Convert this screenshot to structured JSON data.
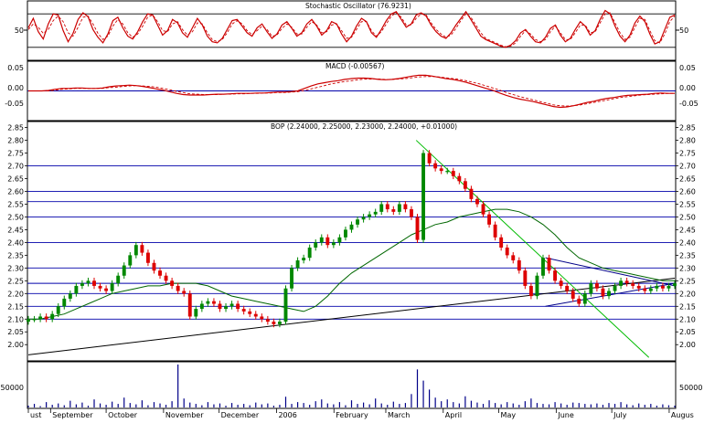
{
  "chart_data": [
    {
      "type": "line",
      "panel": "stochastic",
      "title": "Stochastic Oscillator (76.9231)",
      "yticks": [
        "50"
      ],
      "ylim": [
        0,
        100
      ],
      "levels": [
        80,
        20
      ],
      "grid": false,
      "series": [
        {
          "role": "%K",
          "color": "#cc0000",
          "values": [
            55,
            72,
            48,
            35,
            62,
            80,
            78,
            50,
            30,
            45,
            70,
            82,
            75,
            52,
            38,
            28,
            44,
            68,
            74,
            55,
            40,
            35,
            48,
            66,
            80,
            78,
            60,
            42,
            50,
            70,
            64,
            46,
            38,
            55,
            72,
            60,
            40,
            30,
            28,
            36,
            52,
            68,
            70,
            58,
            46,
            40,
            55,
            62,
            48,
            36,
            44,
            60,
            66,
            54,
            40,
            46,
            62,
            70,
            58,
            42,
            50,
            66,
            62,
            44,
            30,
            40,
            58,
            72,
            66,
            46,
            38,
            52,
            68,
            80,
            84,
            70,
            56,
            62,
            78,
            82,
            76,
            60,
            48,
            40,
            36,
            46,
            60,
            72,
            84,
            70,
            55,
            40,
            34,
            30,
            26,
            22,
            20,
            24,
            32,
            46,
            52,
            40,
            30,
            28,
            38,
            54,
            60,
            42,
            30,
            36,
            52,
            66,
            58,
            42,
            50,
            70,
            86,
            80,
            58,
            40,
            30,
            42,
            64,
            76,
            66,
            44,
            26,
            30,
            52,
            74,
            78
          ]
        },
        {
          "role": "%D",
          "color": "#cc0000",
          "dash": true,
          "values": [
            52,
            62,
            56,
            45,
            52,
            68,
            76,
            66,
            46,
            40,
            56,
            74,
            76,
            62,
            45,
            34,
            40,
            58,
            70,
            62,
            46,
            38,
            44,
            58,
            74,
            78,
            66,
            50,
            48,
            62,
            66,
            52,
            42,
            48,
            64,
            62,
            46,
            34,
            30,
            34,
            46,
            62,
            68,
            62,
            50,
            43,
            50,
            58,
            52,
            40,
            42,
            54,
            62,
            56,
            44,
            44,
            56,
            66,
            60,
            46,
            48,
            60,
            62,
            50,
            36,
            38,
            52,
            66,
            66,
            50,
            40,
            48,
            62,
            76,
            82,
            74,
            60,
            60,
            72,
            80,
            78,
            64,
            52,
            44,
            38,
            42,
            54,
            68,
            80,
            74,
            60,
            46,
            36,
            32,
            28,
            24,
            21,
            22,
            28,
            40,
            50,
            44,
            34,
            30,
            34,
            48,
            58,
            46,
            34,
            34,
            46,
            60,
            60,
            46,
            48,
            64,
            80,
            82,
            64,
            46,
            34,
            38,
            56,
            72,
            70,
            50,
            32,
            28,
            44,
            66,
            76
          ]
        }
      ]
    },
    {
      "type": "line",
      "panel": "macd",
      "title": "MACD (-0.00567)",
      "yticks": [
        "0.05",
        "0.00",
        "-0.05"
      ],
      "ylim": [
        -0.07,
        0.07
      ],
      "levels": [
        0
      ],
      "series": [
        {
          "role": "MACD",
          "color": "#cc0000",
          "values": [
            0.0,
            0.0,
            0.0,
            0.001,
            0.004,
            0.006,
            0.006,
            0.007,
            0.007,
            0.006,
            0.006,
            0.007,
            0.01,
            0.012,
            0.013,
            0.014,
            0.013,
            0.011,
            0.008,
            0.005,
            0.002,
            -0.002,
            -0.006,
            -0.009,
            -0.01,
            -0.01,
            -0.01,
            -0.009,
            -0.008,
            -0.008,
            -0.007,
            -0.006,
            -0.006,
            -0.006,
            -0.005,
            -0.005,
            -0.004,
            -0.003,
            -0.003,
            -0.002,
            0.0,
            0.006,
            0.012,
            0.017,
            0.02,
            0.023,
            0.025,
            0.028,
            0.03,
            0.031,
            0.031,
            0.03,
            0.028,
            0.027,
            0.028,
            0.03,
            0.033,
            0.036,
            0.038,
            0.038,
            0.036,
            0.033,
            0.03,
            0.028,
            0.025,
            0.021,
            0.016,
            0.011,
            0.006,
            0.001,
            -0.005,
            -0.011,
            -0.016,
            -0.02,
            -0.023,
            -0.026,
            -0.03,
            -0.034,
            -0.038,
            -0.04,
            -0.039,
            -0.036,
            -0.032,
            -0.028,
            -0.025,
            -0.021,
            -0.018,
            -0.016,
            -0.013,
            -0.011,
            -0.01,
            -0.009,
            -0.008,
            -0.006,
            -0.005,
            -0.006,
            -0.006
          ]
        },
        {
          "role": "Signal",
          "color": "#cc0000",
          "dash": true,
          "values": [
            0.0,
            0.0,
            0.0,
            0.0,
            0.002,
            0.004,
            0.005,
            0.006,
            0.006,
            0.006,
            0.006,
            0.006,
            0.008,
            0.009,
            0.011,
            0.012,
            0.013,
            0.012,
            0.011,
            0.009,
            0.006,
            0.003,
            -0.001,
            -0.004,
            -0.007,
            -0.008,
            -0.009,
            -0.009,
            -0.009,
            -0.008,
            -0.008,
            -0.007,
            -0.007,
            -0.006,
            -0.006,
            -0.005,
            -0.005,
            -0.004,
            -0.004,
            -0.003,
            -0.002,
            0.001,
            0.005,
            0.009,
            0.013,
            0.017,
            0.02,
            0.023,
            0.025,
            0.027,
            0.029,
            0.029,
            0.029,
            0.028,
            0.028,
            0.029,
            0.03,
            0.032,
            0.034,
            0.035,
            0.035,
            0.034,
            0.032,
            0.03,
            0.028,
            0.025,
            0.021,
            0.017,
            0.012,
            0.007,
            0.002,
            -0.004,
            -0.009,
            -0.014,
            -0.018,
            -0.022,
            -0.026,
            -0.03,
            -0.034,
            -0.036,
            -0.037,
            -0.036,
            -0.034,
            -0.031,
            -0.028,
            -0.025,
            -0.022,
            -0.019,
            -0.016,
            -0.014,
            -0.012,
            -0.01,
            -0.009,
            -0.008,
            -0.007,
            -0.006,
            -0.006
          ]
        }
      ]
    },
    {
      "type": "candlestick",
      "panel": "price",
      "title": "BOP (2.24000, 2.25000, 2.23000, 2.24000, +0.01000)",
      "ylim": [
        1.94,
        2.87
      ],
      "yticks": [
        "2.85",
        "2.80",
        "2.75",
        "2.70",
        "2.65",
        "2.60",
        "2.55",
        "2.50",
        "2.45",
        "2.40",
        "2.35",
        "2.30",
        "2.25",
        "2.20",
        "2.15",
        "2.10",
        "2.05",
        "2.00"
      ],
      "horizontal_levels": [
        2.7,
        2.6,
        2.56,
        2.5,
        2.4,
        2.3,
        2.24,
        2.2,
        2.15,
        2.1
      ],
      "up_color": "#008800",
      "down_color": "#dd0000",
      "ma_color": "#006600",
      "ma_values": [
        2.1,
        2.1,
        2.11,
        2.12,
        2.14,
        2.16,
        2.18,
        2.2,
        2.21,
        2.22,
        2.23,
        2.23,
        2.24,
        2.24,
        2.24,
        2.23,
        2.21,
        2.19,
        2.18,
        2.17,
        2.16,
        2.15,
        2.14,
        2.13,
        2.15,
        2.19,
        2.24,
        2.28,
        2.31,
        2.34,
        2.37,
        2.4,
        2.43,
        2.45,
        2.47,
        2.48,
        2.5,
        2.51,
        2.52,
        2.53,
        2.53,
        2.52,
        2.5,
        2.47,
        2.43,
        2.38,
        2.34,
        2.32,
        2.3,
        2.29,
        2.28,
        2.27,
        2.26,
        2.25,
        2.25
      ],
      "trendlines": [
        {
          "color": "#000000",
          "from": [
            0.0,
            1.96
          ],
          "to": [
            1.0,
            2.26
          ]
        },
        {
          "color": "#00bb00",
          "from": [
            0.6,
            2.8
          ],
          "to": [
            0.96,
            1.95
          ]
        },
        {
          "color": "#000088",
          "from": [
            0.8,
            2.34
          ],
          "to": [
            1.0,
            2.23
          ]
        },
        {
          "color": "#000088",
          "from": [
            0.8,
            2.15
          ],
          "to": [
            1.0,
            2.24
          ]
        }
      ],
      "closes": [
        2.1,
        2.1,
        2.11,
        2.1,
        2.12,
        2.15,
        2.18,
        2.2,
        2.23,
        2.24,
        2.25,
        2.23,
        2.22,
        2.21,
        2.24,
        2.27,
        2.31,
        2.35,
        2.39,
        2.36,
        2.32,
        2.29,
        2.27,
        2.25,
        2.23,
        2.21,
        2.2,
        2.11,
        2.14,
        2.16,
        2.17,
        2.16,
        2.14,
        2.15,
        2.16,
        2.14,
        2.13,
        2.12,
        2.11,
        2.1,
        2.09,
        2.08,
        2.09,
        2.22,
        2.3,
        2.33,
        2.34,
        2.38,
        2.4,
        2.42,
        2.39,
        2.4,
        2.42,
        2.45,
        2.47,
        2.49,
        2.5,
        2.51,
        2.52,
        2.55,
        2.53,
        2.52,
        2.55,
        2.53,
        2.5,
        2.41,
        2.75,
        2.71,
        2.69,
        2.68,
        2.68,
        2.66,
        2.64,
        2.61,
        2.57,
        2.55,
        2.51,
        2.47,
        2.42,
        2.38,
        2.35,
        2.33,
        2.29,
        2.23,
        2.19,
        2.27,
        2.34,
        2.29,
        2.25,
        2.23,
        2.21,
        2.18,
        2.16,
        2.2,
        2.24,
        2.22,
        2.19,
        2.21,
        2.23,
        2.25,
        2.24,
        2.23,
        2.22,
        2.21,
        2.22,
        2.23,
        2.22,
        2.23,
        2.24
      ],
      "volume": {
        "yticks": [
          "50000"
        ],
        "ylim": [
          0,
          100000
        ],
        "values": [
          4000,
          8000,
          3000,
          12000,
          6000,
          9000,
          5000,
          15000,
          7000,
          11000,
          4000,
          18000,
          9000,
          6000,
          13000,
          8000,
          22000,
          10000,
          7000,
          16000,
          5000,
          12000,
          9000,
          6000,
          14000,
          96000,
          20000,
          11000,
          8000,
          5000,
          12000,
          7000,
          9000,
          4000,
          10000,
          6000,
          8000,
          5000,
          11000,
          7000,
          9000,
          4000,
          6000,
          24000,
          8000,
          12000,
          10000,
          6000,
          14000,
          18000,
          9000,
          7000,
          12000,
          5000,
          16000,
          8000,
          11000,
          7000,
          20000,
          9000,
          6000,
          13000,
          8000,
          10000,
          30000,
          85000,
          60000,
          40000,
          22000,
          14000,
          18000,
          12000,
          9000,
          25000,
          15000,
          11000,
          8000,
          16000,
          10000,
          7000,
          12000,
          9000,
          6000,
          14000,
          20000,
          10000,
          8000,
          7000,
          12000,
          9000,
          6000,
          11000,
          10000,
          8000,
          7000,
          9000,
          6000,
          10000,
          8000,
          12000,
          7000,
          5000,
          9000,
          6000,
          8000,
          4000,
          7000,
          5000,
          4000
        ]
      },
      "x_ticks": [
        "ust",
        "September",
        "October",
        "November",
        "December",
        "2006",
        "February",
        "March",
        "April",
        "May",
        "June",
        "July",
        "Augus"
      ],
      "x_tick_dates": [
        "2005-08",
        "2005-09",
        "2005-10",
        "2005-11",
        "2005-12",
        "2006-01",
        "2006-02",
        "2006-03",
        "2006-04",
        "2006-05",
        "2006-06",
        "2006-07",
        "2006-08"
      ]
    }
  ]
}
